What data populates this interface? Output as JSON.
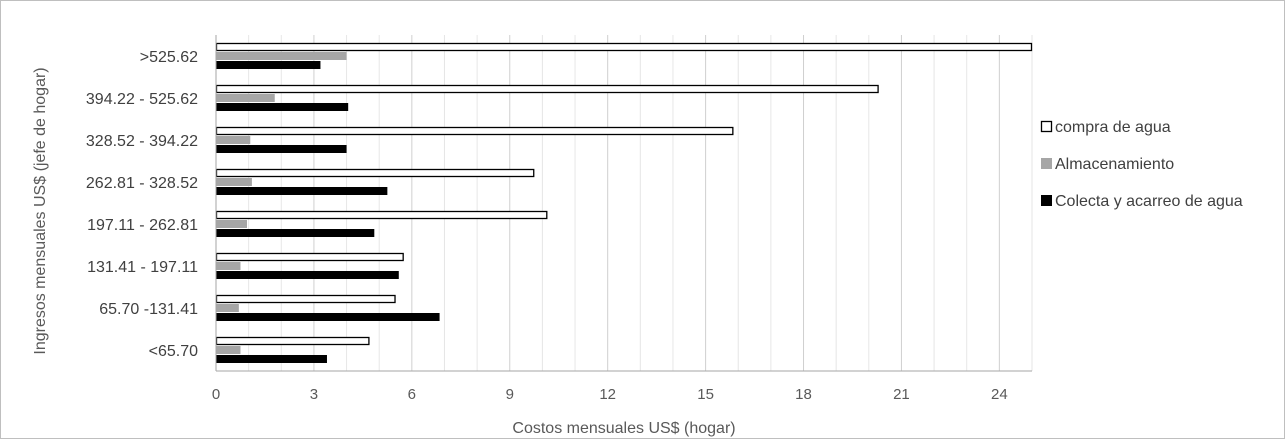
{
  "chart_data": {
    "type": "bar",
    "orientation": "horizontal",
    "title": "",
    "xlabel": "Costos mensuales US$ (hogar)",
    "ylabel": "Ingresos mensuales US$ (jefe de hogar)",
    "xlim": [
      0,
      25
    ],
    "xticks": [
      0,
      3,
      6,
      9,
      12,
      15,
      18,
      21,
      24
    ],
    "xtick_labels": [
      "0",
      "3",
      "6",
      "9",
      "12",
      "15",
      "18",
      "21",
      "24"
    ],
    "grid": "vertical gridlines",
    "legend_position": "right",
    "categories": [
      ">525.62",
      "394.22 - 525.62",
      "328.52 - 394.22",
      "262.81 - 328.52",
      "197.11 - 262.81",
      "131.41 - 197.11",
      "65.70 -131.41",
      "<65.70"
    ],
    "series": [
      {
        "name": "compra de agua",
        "color": "#ffffff",
        "stroke": "#000000",
        "values": [
          25.0,
          20.3,
          15.85,
          9.75,
          10.15,
          5.75,
          5.5,
          4.7
        ]
      },
      {
        "name": "Almacenamiento",
        "color": "#a6a6a6",
        "stroke": "none",
        "values": [
          4.0,
          1.8,
          1.05,
          1.1,
          0.95,
          0.75,
          0.7,
          0.75
        ]
      },
      {
        "name": "Colecta y acarreo de agua",
        "color": "#000000",
        "stroke": "none",
        "values": [
          3.2,
          4.05,
          4.0,
          5.25,
          4.85,
          5.6,
          6.85,
          3.4
        ]
      }
    ]
  }
}
